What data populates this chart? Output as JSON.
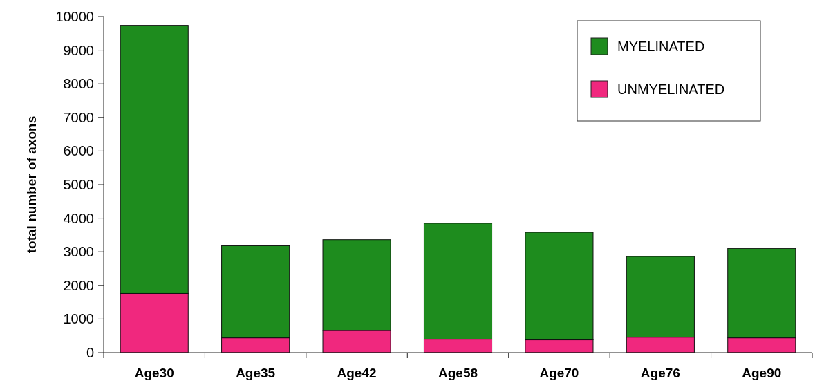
{
  "chart_data": {
    "type": "bar",
    "stacked": true,
    "ylabel": "total number of axons",
    "categories": [
      "Age30",
      "Age35",
      "Age42",
      "Age58",
      "Age70",
      "Age76",
      "Age90"
    ],
    "series": [
      {
        "name": "UNMYELINATED",
        "color": "#f0287e",
        "values": [
          1760,
          440,
          660,
          400,
          380,
          460,
          440
        ]
      },
      {
        "name": "MYELINATED",
        "color": "#1e8c1e",
        "values": [
          7980,
          2740,
          2700,
          3450,
          3200,
          2400,
          2660
        ]
      }
    ],
    "ylim": [
      0,
      10000
    ],
    "yticks": [
      0,
      1000,
      2000,
      3000,
      4000,
      5000,
      6000,
      7000,
      8000,
      9000,
      10000
    ],
    "legend": "top right"
  }
}
